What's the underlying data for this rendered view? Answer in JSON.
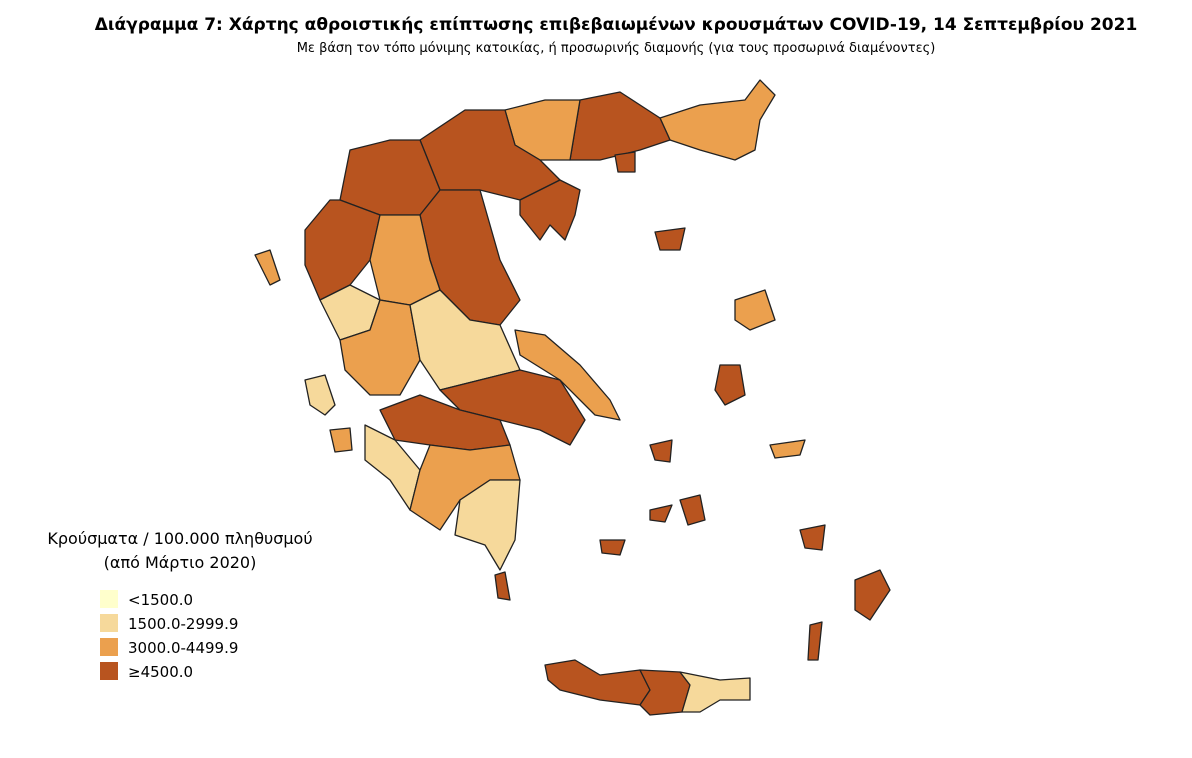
{
  "title": "Διάγραμμα 7: Χάρτης αθροιστικής επίπτωσης επιβεβαιωμένων κρουσμάτων COVID-19, 14 Σεπτεμβρίου 2021",
  "subtitle": "Με βάση τον τόπο μόνιμης κατοικίας, ή προσωρινής διαμονής (για τους προσωρινά διαμένοντες)",
  "legend": {
    "title": [
      "Κρούσματα / 100.000 πληθυσμού",
      "(από Μάρτιο 2020)"
    ],
    "items": [
      {
        "label": "<1500.0",
        "color": "#ffffcc"
      },
      {
        "label": "1500.0-2999.9",
        "color": "#f6d99b"
      },
      {
        "label": "3000.0-4499.9",
        "color": "#eba04e"
      },
      {
        "label": "≥4500.0",
        "color": "#b8541f"
      }
    ]
  }
}
